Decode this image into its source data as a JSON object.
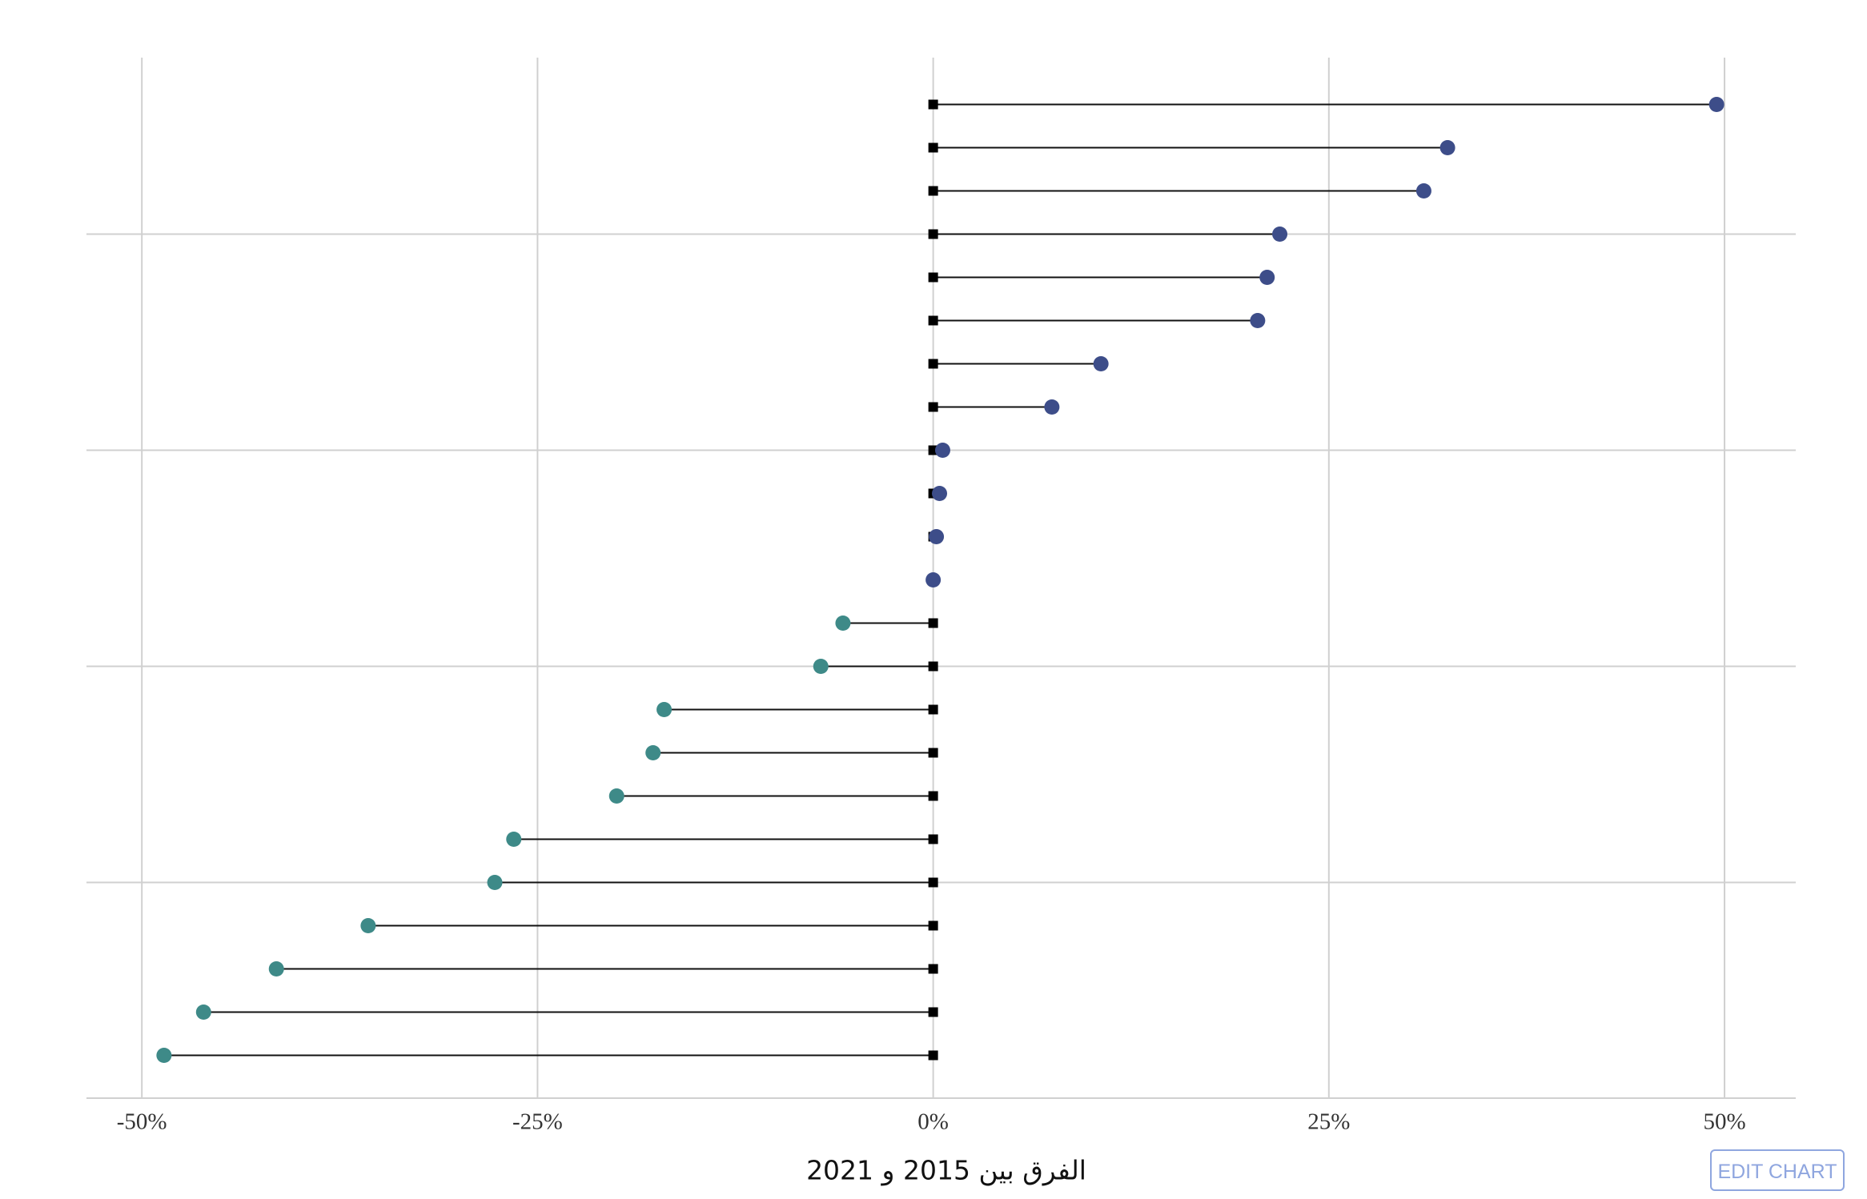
{
  "chart_data": {
    "type": "lollipop",
    "x_label": "الفرق بين 2015 و 2021",
    "values": [
      49.5,
      32.5,
      31.0,
      21.9,
      21.1,
      20.5,
      10.6,
      7.5,
      0.6,
      0.4,
      0.2,
      0,
      -5.7,
      -7.1,
      -17.0,
      -17.7,
      -20.0,
      -26.5,
      -27.7,
      -35.7,
      -41.5,
      -46.1,
      -48.6
    ],
    "color_positive": "#3d4d89",
    "color_negative": "#3e8a88",
    "xlim": [
      -53.5,
      54.5
    ],
    "xticks": [
      {
        "value": -50,
        "label": "-50%"
      },
      {
        "value": -25,
        "label": "-25%"
      },
      {
        "value": 0,
        "label": "0%"
      },
      {
        "value": 25,
        "label": "25%"
      },
      {
        "value": 50,
        "label": "50%"
      }
    ],
    "grid": true
  },
  "button": "EDIT CHART"
}
